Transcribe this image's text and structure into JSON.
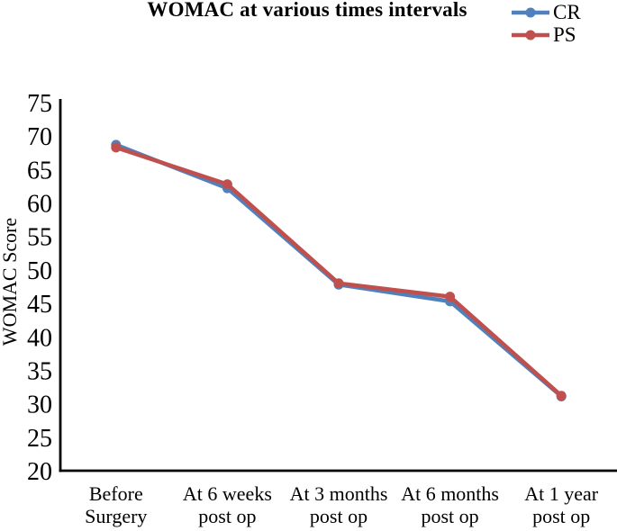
{
  "figure_title": "WOMAC at various times intervals",
  "legend": {
    "position": "top-right",
    "items": [
      {
        "label": "CR",
        "color": "#4F81BD"
      },
      {
        "label": "PS",
        "color": "#C0504D"
      }
    ]
  },
  "chart_data": {
    "type": "line",
    "title": "WOMAC at various times intervals",
    "xlabel": "",
    "ylabel": "WOMAC Score",
    "ylim": [
      20,
      75
    ],
    "ytick_step": 5,
    "ytick_labels": [
      "75",
      "70",
      "65",
      "60",
      "55",
      "50",
      "45",
      "40",
      "35",
      "30",
      "25",
      "20"
    ],
    "grid": false,
    "legend_position": "top-right",
    "categories": [
      "Before Surgery",
      "At 6 weeks post op",
      "At 3 months post op",
      "At 6 months post op",
      "At 1 year post op"
    ],
    "category_lines": [
      [
        "Before",
        "Surgery"
      ],
      [
        "At 6 weeks",
        "post op"
      ],
      [
        "At 3 months",
        "post op"
      ],
      [
        "At 6 months",
        "post op"
      ],
      [
        "At 1 year",
        "post op"
      ]
    ],
    "series": [
      {
        "name": "CR",
        "color": "#4F81BD",
        "marker": "circle",
        "values": [
          68.7,
          62.2,
          47.8,
          45.3,
          31.1
        ]
      },
      {
        "name": "PS",
        "color": "#C0504D",
        "marker": "circle",
        "values": [
          68.3,
          62.8,
          48,
          46,
          31.2
        ]
      }
    ]
  }
}
